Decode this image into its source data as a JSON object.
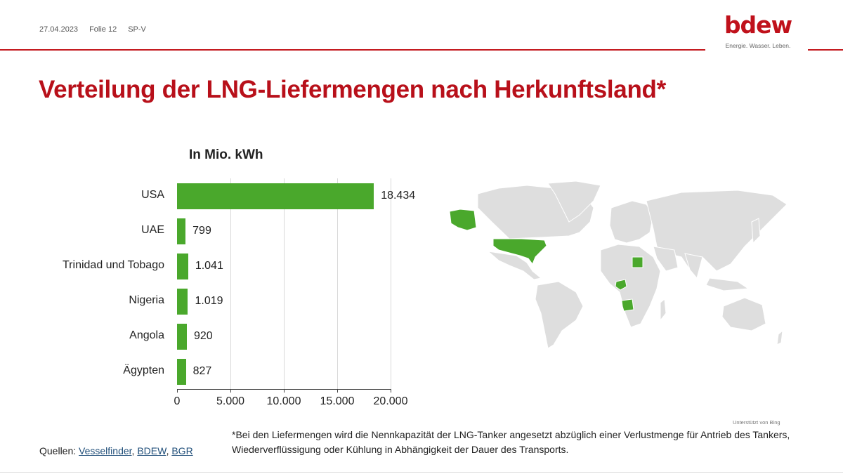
{
  "header": {
    "date": "27.04.2023",
    "slide": "Folie 12",
    "dept": "SP-V",
    "logo_word": "bdew",
    "logo_tagline": "Energie. Wasser. Leben."
  },
  "title": "Verteilung der LNG-Liefermengen nach Herkunftsland*",
  "colors": {
    "accent_red": "#c41a1f",
    "title_red": "#b8101a",
    "bar_green": "#4aa82c",
    "map_grey": "#dedede"
  },
  "chart_data": {
    "type": "bar",
    "orientation": "horizontal",
    "title": "In Mio. kWh",
    "xlabel": "",
    "ylabel": "",
    "categories": [
      "USA",
      "UAE",
      "Trinidad und Tobago",
      "Nigeria",
      "Angola",
      "Ägypten"
    ],
    "values": [
      18434,
      799,
      1041,
      1019,
      920,
      827
    ],
    "value_labels": [
      "18.434",
      "799",
      "1.041",
      "1.019",
      "920",
      "827"
    ],
    "xlim": [
      0,
      20000
    ],
    "x_ticks": [
      0,
      5000,
      10000,
      15000,
      20000
    ],
    "x_tick_labels": [
      "0",
      "5.000",
      "10.000",
      "15.000",
      "20.000"
    ],
    "grid": "vertical",
    "legend": "none",
    "color": "#4aa82c"
  },
  "map": {
    "highlighted_countries": [
      "USA",
      "Egypt",
      "Nigeria",
      "Angola"
    ],
    "credit": "Unterstützt von Bing"
  },
  "footnote": "*Bei den Liefermengen wird die Nennkapazität der LNG-Tanker angesetzt abzüglich einer Verlustmenge für Antrieb des Tankers, Wiederverflüssigung oder Kühlung in Abhängigkeit der Dauer des Transports.",
  "sources": {
    "label": "Quellen:",
    "links": [
      "Vesselfinder",
      "BDEW",
      "BGR"
    ]
  }
}
